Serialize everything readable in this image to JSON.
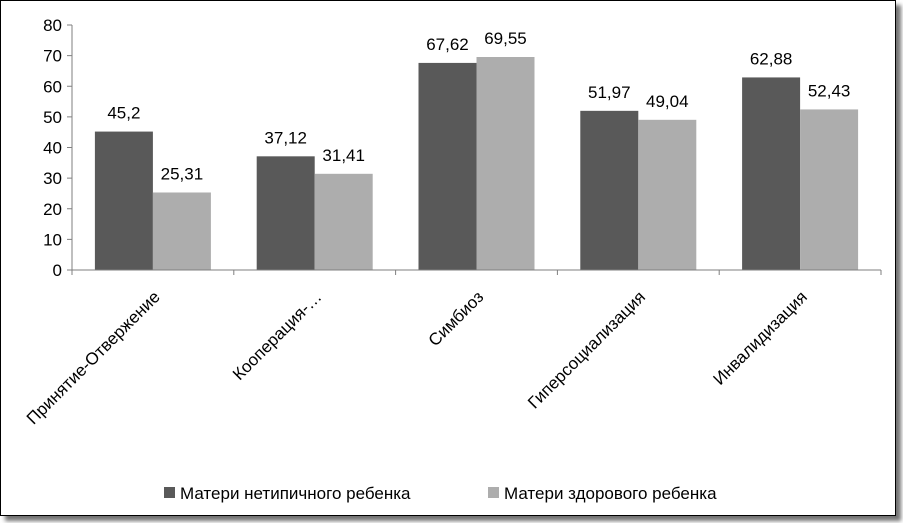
{
  "chart_data": {
    "type": "bar",
    "categories": [
      "Принятие-Отвержение",
      "Кооперация-…",
      "Симбиоз",
      "Гиперсоциализация",
      "Инвалидизация"
    ],
    "series": [
      {
        "name": "Матери нетипичного ребенка",
        "values": [
          45.2,
          37.12,
          67.62,
          51.97,
          62.88
        ],
        "labels": [
          "45,2",
          "37,12",
          "67,62",
          "51,97",
          "62,88"
        ],
        "color": "#595959"
      },
      {
        "name": "Матери здорового ребенка",
        "values": [
          25.31,
          31.41,
          69.55,
          49.04,
          52.43
        ],
        "labels": [
          "25,31",
          "31,41",
          "69,55",
          "49,04",
          "52,43"
        ],
        "color": "#adadad"
      }
    ],
    "ylim": [
      0,
      80
    ],
    "yticks": [
      0,
      10,
      20,
      30,
      40,
      50,
      60,
      70,
      80
    ],
    "grid": false,
    "legend_position": "bottom"
  }
}
